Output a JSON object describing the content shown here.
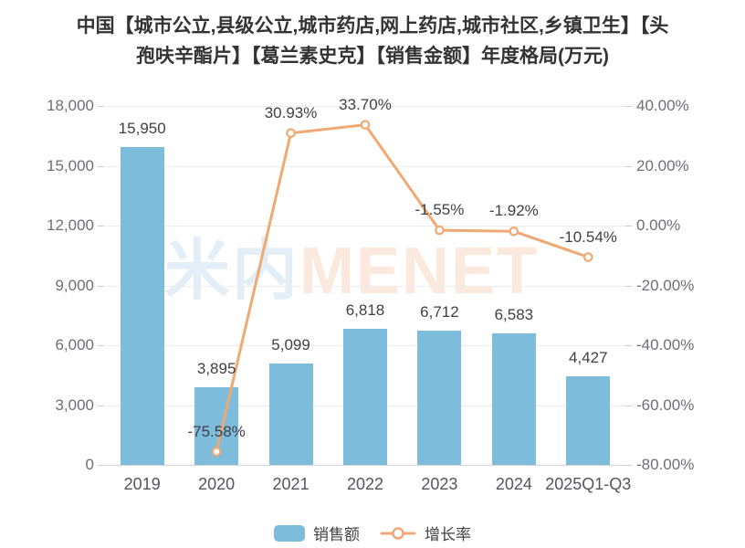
{
  "title": {
    "line1": "中国【城市公立,县级公立,城市药店,网上药店,城市社区,乡镇卫生】【头",
    "line2": "孢呋辛酯片】【葛兰素史克】【销售金额】年度格局(万元)"
  },
  "watermark": {
    "cjk": "米内",
    "latin": "MENET"
  },
  "colors": {
    "bar": "#7dbddb",
    "line": "#f0a973",
    "grid": "#ececec",
    "axis_line": "#d6d6d6",
    "tick": "#cccccc",
    "axis_label": "#6e6e78",
    "x_label": "#55555e",
    "value_label": "#3f3f46",
    "title": "#333333",
    "watermark_cjk": "#e4eef6",
    "watermark_latin": "#fbe9de"
  },
  "chart_data": {
    "type": "bar+line",
    "title": "中国【城市公立,县级公立,城市药店,网上药店,城市社区,乡镇卫生】【头孢呋辛酯片】【葛兰素史克】【销售金额】年度格局(万元)",
    "categories": [
      "2019",
      "2020",
      "2021",
      "2022",
      "2023",
      "2024",
      "2025Q1-Q3"
    ],
    "series": [
      {
        "name": "销售额",
        "type": "bar",
        "axis": "left",
        "values": [
          15950,
          3895,
          5099,
          6818,
          6712,
          6583,
          4427
        ],
        "labels": [
          "15,950",
          "3,895",
          "5,099",
          "6,818",
          "6,712",
          "6,583",
          "4,427"
        ]
      },
      {
        "name": "增长率",
        "type": "line",
        "axis": "right",
        "values": [
          null,
          -75.58,
          30.93,
          33.7,
          -1.55,
          -1.92,
          -10.54
        ],
        "labels": [
          null,
          "-75.58%",
          "30.93%",
          "33.70%",
          "-1.55%",
          "-1.92%",
          "-10.54%"
        ]
      }
    ],
    "left_axis": {
      "min": 0,
      "max": 18000,
      "step": 3000,
      "tick_labels": [
        "0",
        "3,000",
        "6,000",
        "9,000",
        "12,000",
        "15,000",
        "18,000"
      ]
    },
    "right_axis": {
      "min": -80,
      "max": 40,
      "step": 20,
      "tick_labels": [
        "-80.00%",
        "-60.00%",
        "-40.00%",
        "-20.00%",
        "0.00%",
        "20.00%",
        "40.00%"
      ]
    },
    "grid": true,
    "legend_position": "bottom"
  }
}
